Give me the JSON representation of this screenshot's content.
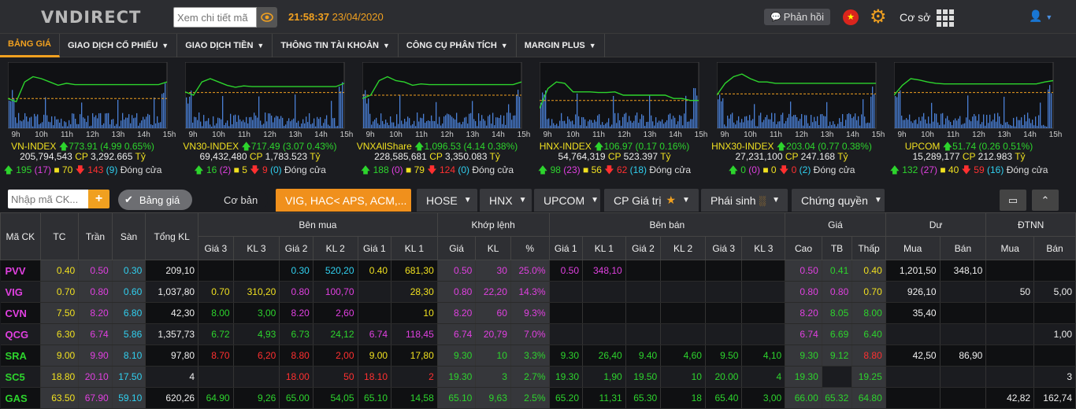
{
  "header": {
    "logo": "VNDIRECT",
    "search_placeholder": "Xem chi tiết mã",
    "time": "21:58:37",
    "date": "23/04/2020",
    "feedback_label": "Phản hồi",
    "mode_label": "Cơ sở"
  },
  "menu": [
    {
      "label": "BẢNG GIÁ",
      "dropdown": false,
      "active": true
    },
    {
      "label": "GIAO DỊCH CỔ PHIẾU",
      "dropdown": true
    },
    {
      "label": "GIAO DỊCH TIỀN",
      "dropdown": true
    },
    {
      "label": "THÔNG TIN TÀI KHOẢN",
      "dropdown": true
    },
    {
      "label": "CÔNG CỤ PHÂN TÍCH",
      "dropdown": true
    },
    {
      "label": "MARGIN PLUS",
      "dropdown": true
    }
  ],
  "chart_data": [
    {
      "type": "line",
      "title": "VN-INDEX",
      "x": [
        "9h",
        "10h",
        "11h",
        "12h",
        "13h",
        "14h",
        "15h"
      ],
      "value": "773.91",
      "change": "(4.99 0.65%)",
      "volume": "205,794,543",
      "cp": "CP",
      "value_traded": "3,292.665",
      "unit": "Tỷ",
      "up": "195",
      "ceil": "(17)",
      "ref": "70",
      "down": "143",
      "floor": "(9)",
      "status": "Đóng cửa",
      "series": [
        0.55,
        0.6,
        0.3,
        0.22,
        0.25,
        0.3,
        0.35,
        0.32,
        0.34,
        0.34,
        0.34,
        0.34,
        0.34,
        0.34,
        0.34,
        0.34,
        0.34,
        0.34,
        0.34,
        0.3
      ],
      "ref_line": 0.55,
      "close_level": 0.33
    },
    {
      "type": "line",
      "title": "VN30-INDEX",
      "x": [
        "9h",
        "10h",
        "11h",
        "12h",
        "13h",
        "14h",
        "15h"
      ],
      "value": "717.49",
      "change": "(3.07 0.43%)",
      "volume": "69,432,480",
      "cp": "CP",
      "value_traded": "1,783.523",
      "unit": "Tỷ",
      "up": "16",
      "ceil": "(2)",
      "ref": "5",
      "down": "9",
      "floor": "(0)",
      "status": "Đóng cửa",
      "series": [
        0.45,
        0.5,
        0.3,
        0.25,
        0.3,
        0.35,
        0.38,
        0.36,
        0.37,
        0.37,
        0.37,
        0.37,
        0.37,
        0.37,
        0.37,
        0.37,
        0.37,
        0.37,
        0.37,
        0.32
      ],
      "ref_line": 0.46,
      "close_level": 0.36
    },
    {
      "type": "line",
      "title": "VNXAllShare",
      "x": [
        "9h",
        "10h",
        "11h",
        "12h",
        "13h",
        "14h",
        "15h"
      ],
      "value": "1,096.53",
      "change": "(4.14 0.38%)",
      "volume": "228,585,681",
      "cp": "CP",
      "value_traded": "3,350.083",
      "unit": "Tỷ",
      "up": "188",
      "ceil": "(0)",
      "ref": "79",
      "down": "124",
      "floor": "(0)",
      "status": "Đóng cửa",
      "series": [
        0.55,
        0.5,
        0.28,
        0.22,
        0.28,
        0.3,
        0.35,
        0.33,
        0.34,
        0.34,
        0.34,
        0.34,
        0.34,
        0.34,
        0.34,
        0.34,
        0.34,
        0.34,
        0.34,
        0.3
      ],
      "ref_line": 0.5,
      "close_level": 0.33
    },
    {
      "type": "line",
      "title": "HNX-INDEX",
      "x": [
        "9h",
        "10h",
        "11h",
        "12h",
        "13h",
        "14h",
        "15h"
      ],
      "value": "106.97",
      "change": "(0.17 0.16%)",
      "volume": "54,764,319",
      "cp": "CP",
      "value_traded": "523.397",
      "unit": "Tỷ",
      "up": "98",
      "ceil": "(23)",
      "ref": "56",
      "down": "62",
      "floor": "(18)",
      "status": "Đóng cửa",
      "series": [
        0.7,
        0.4,
        0.3,
        0.32,
        0.45,
        0.45,
        0.45,
        0.46,
        0.46,
        0.45,
        0.5,
        0.5,
        0.5,
        0.5,
        0.5,
        0.5,
        0.55,
        0.55,
        0.58,
        0.58
      ],
      "ref_line": 0.58,
      "close_level": 0.5
    },
    {
      "type": "line",
      "title": "HNX30-INDEX",
      "x": [
        "9h",
        "10h",
        "11h",
        "12h",
        "13h",
        "14h",
        "15h"
      ],
      "value": "203.04",
      "change": "(0.77 0.38%)",
      "volume": "27,231,100",
      "cp": "CP",
      "value_traded": "247.168",
      "unit": "Tỷ",
      "up": "0",
      "ceil": "(0)",
      "ref": "0",
      "down": "0",
      "floor": "(2)",
      "status": "Đóng cửa",
      "series": [
        0.5,
        0.32,
        0.22,
        0.18,
        0.25,
        0.3,
        0.3,
        0.32,
        0.32,
        0.32,
        0.32,
        0.32,
        0.32,
        0.32,
        0.32,
        0.32,
        0.32,
        0.32,
        0.32,
        0.32
      ],
      "ref_line": 0.48,
      "close_level": 0.32
    },
    {
      "type": "line",
      "title": "UPCOM",
      "x": [
        "9h",
        "10h",
        "11h",
        "12h",
        "13h",
        "14h",
        "15h"
      ],
      "value": "51.74",
      "change": "(0.26 0.51%)",
      "volume": "15,289,177",
      "cp": "CP",
      "value_traded": "212.983",
      "unit": "Tỷ",
      "up": "132",
      "ceil": "(27)",
      "ref": "40",
      "down": "59",
      "floor": "(16)",
      "status": "Đóng cửa",
      "series": [
        0.5,
        0.35,
        0.25,
        0.27,
        0.3,
        0.32,
        0.33,
        0.33,
        0.33,
        0.33,
        0.33,
        0.33,
        0.33,
        0.33,
        0.33,
        0.33,
        0.33,
        0.33,
        0.3,
        0.28
      ],
      "ref_line": 0.46,
      "close_level": 0.33
    }
  ],
  "tabs": {
    "input_placeholder": "Nhập mã CK...",
    "toggle_on": "Bảng giá",
    "toggle_off": "Cơ bản",
    "items": [
      {
        "label": "VIG, HAC< APS, ACM,...",
        "selected": true
      },
      {
        "label": "HOSE"
      },
      {
        "label": "HNX"
      },
      {
        "label": "UPCOM"
      },
      {
        "label": "CP Giá trị"
      },
      {
        "label": "Phái sinh"
      },
      {
        "label": "Chứng quyền"
      }
    ]
  },
  "table": {
    "groups": {
      "ben_mua": "Bên mua",
      "khop_lenh": "Khớp lệnh",
      "ben_ban": "Bên bán",
      "gia": "Giá",
      "du": "Dư",
      "dtnn": "ĐTNN"
    },
    "columns": [
      "Mã CK",
      "TC",
      "Trần",
      "Sàn",
      "Tổng KL",
      "Giá 3",
      "KL 3",
      "Giá 2",
      "KL 2",
      "Giá 1",
      "KL 1",
      "Giá",
      "KL",
      "%",
      "Giá 1",
      "KL 1",
      "Giá 2",
      "KL 2",
      "Giá 3",
      "KL 3",
      "Cao",
      "TB",
      "Thấp",
      "Mua",
      "Bán",
      "Mua",
      "Bán"
    ],
    "rows": [
      {
        "cells": [
          "PVV",
          "0.40",
          "0.50",
          "0.30",
          "209,10",
          "",
          "",
          "0.30",
          "520,20",
          "0.40",
          "681,30",
          "0.50",
          "30",
          "25.0%",
          "0.50",
          "348,10",
          "",
          "",
          "",
          "",
          "0.50",
          "0.41",
          "0.40",
          "1,201,50",
          "348,10",
          "",
          ""
        ],
        "colors": [
          "mag",
          "yel",
          "mag",
          "cya",
          "w",
          "",
          "",
          "cya",
          "cya",
          "yel",
          "yel",
          "mag",
          "mag",
          "mag",
          "mag",
          "mag",
          "",
          "",
          "",
          "",
          "mag",
          "gr",
          "yel",
          "w",
          "w",
          "",
          ""
        ]
      },
      {
        "cells": [
          "VIG",
          "0.70",
          "0.80",
          "0.60",
          "1,037,80",
          "0.70",
          "310,20",
          "0.80",
          "100,70",
          "",
          "28,30",
          "0.80",
          "22,20",
          "14.3%",
          "",
          "",
          "",
          "",
          "",
          "",
          "0.80",
          "0.80",
          "0.70",
          "926,10",
          "",
          "50",
          "5,00"
        ],
        "colors": [
          "mag",
          "yel",
          "mag",
          "cya",
          "w",
          "yel",
          "yel",
          "mag",
          "mag",
          "",
          "yel",
          "mag",
          "mag",
          "mag",
          "",
          "",
          "",
          "",
          "",
          "",
          "mag",
          "mag",
          "yel",
          "w",
          "",
          "w",
          "w"
        ]
      },
      {
        "cells": [
          "CVN",
          "7.50",
          "8.20",
          "6.80",
          "42,30",
          "8.00",
          "3,00",
          "8.20",
          "2,60",
          "",
          "10",
          "8.20",
          "60",
          "9.3%",
          "",
          "",
          "",
          "",
          "",
          "",
          "8.20",
          "8.05",
          "8.00",
          "35,40",
          "",
          "",
          ""
        ],
        "colors": [
          "mag",
          "yel",
          "mag",
          "cya",
          "w",
          "gr",
          "gr",
          "mag",
          "mag",
          "",
          "yel",
          "mag",
          "mag",
          "mag",
          "",
          "",
          "",
          "",
          "",
          "",
          "mag",
          "gr",
          "gr",
          "w",
          "",
          "",
          ""
        ]
      },
      {
        "cells": [
          "QCG",
          "6.30",
          "6.74",
          "5.86",
          "1,357,73",
          "6.72",
          "4,93",
          "6.73",
          "24,12",
          "6.74",
          "118,45",
          "6.74",
          "20,79",
          "7.0%",
          "",
          "",
          "",
          "",
          "",
          "",
          "6.74",
          "6.69",
          "6.40",
          "",
          "",
          "",
          "1,00"
        ],
        "colors": [
          "mag",
          "yel",
          "mag",
          "cya",
          "w",
          "gr",
          "gr",
          "gr",
          "gr",
          "mag",
          "mag",
          "mag",
          "mag",
          "mag",
          "",
          "",
          "",
          "",
          "",
          "",
          "mag",
          "gr",
          "gr",
          "",
          "",
          "",
          "w"
        ]
      },
      {
        "cells": [
          "SRA",
          "9.00",
          "9.90",
          "8.10",
          "97,80",
          "8.70",
          "6,20",
          "8.80",
          "2,00",
          "9.00",
          "17,80",
          "9.30",
          "10",
          "3.3%",
          "9.30",
          "26,40",
          "9.40",
          "4,60",
          "9.50",
          "4,10",
          "9.30",
          "9.12",
          "8.80",
          "42,50",
          "86,90",
          "",
          ""
        ],
        "colors": [
          "gr",
          "yel",
          "mag",
          "cya",
          "w",
          "rd",
          "rd",
          "rd",
          "rd",
          "yel",
          "yel",
          "gr",
          "gr",
          "gr",
          "gr",
          "gr",
          "gr",
          "gr",
          "gr",
          "gr",
          "gr",
          "gr",
          "rd",
          "w",
          "w",
          "",
          ""
        ]
      },
      {
        "cells": [
          "SC5",
          "18.80",
          "20.10",
          "17.50",
          "4",
          "",
          "",
          "18.00",
          "50",
          "18.10",
          "2",
          "19.30",
          "3",
          "2.7%",
          "19.30",
          "1,90",
          "19.50",
          "10",
          "20.00",
          "4",
          "19.30",
          "",
          "19.25",
          "",
          "",
          "",
          "3"
        ],
        "colors": [
          "gr",
          "yel",
          "mag",
          "cya",
          "w",
          "",
          "",
          "rd",
          "rd",
          "rd",
          "rd",
          "gr",
          "gr",
          "gr",
          "gr",
          "gr",
          "gr",
          "gr",
          "gr",
          "gr",
          "gr",
          "",
          "gr",
          "",
          "",
          "",
          "w"
        ]
      },
      {
        "cells": [
          "GAS",
          "63.50",
          "67.90",
          "59.10",
          "620,26",
          "64.90",
          "9,26",
          "65.00",
          "54,05",
          "65.10",
          "14,58",
          "65.10",
          "9,63",
          "2.5%",
          "65.20",
          "11,31",
          "65.30",
          "18",
          "65.40",
          "3,00",
          "66.00",
          "65.32",
          "64.80",
          "",
          "",
          "42,82",
          "162,74"
        ],
        "colors": [
          "gr",
          "yel",
          "mag",
          "cya",
          "w",
          "gr",
          "gr",
          "gr",
          "gr",
          "gr",
          "gr",
          "gr",
          "gr",
          "gr",
          "gr",
          "gr",
          "gr",
          "gr",
          "gr",
          "gr",
          "gr",
          "gr",
          "gr",
          "",
          "",
          "w",
          "w"
        ]
      }
    ]
  },
  "colors": {
    "accent": "#f0a020",
    "up": "#2dd42d",
    "down": "#ff3030",
    "ceiling": "#e040e0",
    "ref": "#f0e020",
    "floor": "#30d0f0"
  }
}
